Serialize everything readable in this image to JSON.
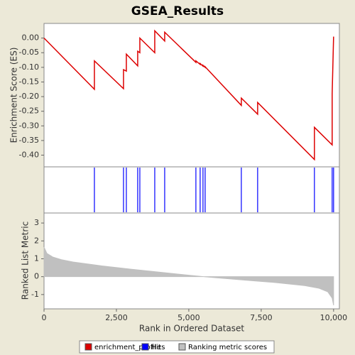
{
  "chart_data": [
    {
      "type": "line",
      "title": "GSEA_Results",
      "ylabel": "Enrichment Score (ES)",
      "series": [
        {
          "name": "enrichment_profile",
          "color": "#dd0000",
          "x": [
            0,
            1740,
            1740,
            2745,
            2745,
            2843,
            2843,
            3235,
            3235,
            3309,
            3309,
            3824,
            3824,
            4167,
            4167,
            5245,
            5245,
            5392,
            5392,
            5490,
            5490,
            5564,
            5564,
            6814,
            6814,
            7377,
            7377,
            9338,
            9338,
            9951,
            9951,
            10000
          ],
          "values": [
            0,
            -0.175,
            -0.078,
            -0.173,
            -0.108,
            -0.113,
            -0.055,
            -0.095,
            -0.045,
            -0.05,
            0.0,
            -0.05,
            0.025,
            -0.01,
            0.02,
            -0.083,
            -0.078,
            -0.09,
            -0.087,
            -0.096,
            -0.093,
            -0.1,
            -0.098,
            -0.23,
            -0.205,
            -0.26,
            -0.22,
            -0.415,
            -0.305,
            -0.365,
            -0.19,
            0.005
          ]
        }
      ],
      "xlim": [
        0,
        10200
      ],
      "ylim": [
        -0.44,
        0.05
      ],
      "yticks": [
        {
          "value": 0,
          "label": "0.00"
        },
        {
          "value": -0.05,
          "label": "-0.05"
        },
        {
          "value": -0.1,
          "label": "-0.10"
        },
        {
          "value": -0.15,
          "label": "-0.15"
        },
        {
          "value": -0.2,
          "label": "-0.20"
        },
        {
          "value": -0.25,
          "label": "-0.25"
        },
        {
          "value": -0.3,
          "label": "-0.30"
        },
        {
          "value": -0.35,
          "label": "-0.35"
        },
        {
          "value": -0.4,
          "label": "-0.40"
        }
      ]
    },
    {
      "type": "rug",
      "series": [
        {
          "name": "Hits",
          "color": "#0000ff",
          "x": [
            1740,
            2745,
            2843,
            3235,
            3309,
            3824,
            4167,
            5245,
            5392,
            5490,
            5564,
            6814,
            7377,
            9338,
            9951,
            10000
          ]
        }
      ],
      "xlim": [
        0,
        10200
      ]
    },
    {
      "type": "area",
      "xlabel": "Rank in Ordered Dataset",
      "ylabel": "Ranked List Metric",
      "series": [
        {
          "name": "Ranking metric scores",
          "color": "#c0c0c0",
          "x": [
            0,
            100,
            300,
            600,
            1000,
            2000,
            3000,
            4000,
            5000,
            5500,
            6000,
            7000,
            8000,
            9000,
            9500,
            9800,
            9950,
            10000
          ],
          "values": [
            1.65,
            1.3,
            1.1,
            0.95,
            0.82,
            0.6,
            0.42,
            0.25,
            0.08,
            0.0,
            -0.07,
            -0.2,
            -0.33,
            -0.5,
            -0.65,
            -0.85,
            -1.2,
            -1.6
          ]
        }
      ],
      "xlim": [
        0,
        10200
      ],
      "ylim": [
        -1.8,
        3.56
      ],
      "yticks": [
        3,
        2,
        1,
        0,
        -1
      ],
      "xticks": [
        0,
        {
          "value": 2500,
          "label": "2,500"
        },
        {
          "value": 5000,
          "label": "5,000"
        },
        {
          "value": 7500,
          "label": "7,500"
        },
        {
          "value": 10000,
          "label": "10,000"
        }
      ]
    }
  ]
}
